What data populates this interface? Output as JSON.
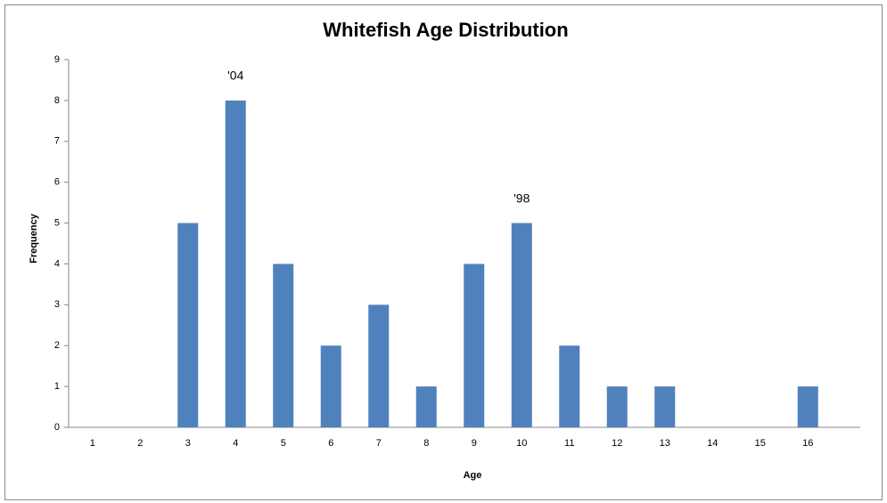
{
  "chart_data": {
    "type": "bar",
    "title": "Whitefish Age Distribution",
    "x_label": "Age",
    "y_label": "Frequency",
    "categories": [
      "1",
      "2",
      "3",
      "4",
      "5",
      "6",
      "7",
      "8",
      "9",
      "10",
      "11",
      "12",
      "13",
      "14",
      "15",
      "16"
    ],
    "values": [
      0,
      0,
      5,
      8,
      4,
      2,
      3,
      1,
      4,
      5,
      2,
      1,
      1,
      0,
      0,
      1
    ],
    "color": "#4f81bd",
    "ylim": [
      0,
      9
    ],
    "yticks": [
      0,
      1,
      2,
      3,
      4,
      5,
      6,
      7,
      8,
      9
    ],
    "grid": false,
    "annotations": [
      {
        "category": 3,
        "text": "'04"
      },
      {
        "category": 9,
        "text": "'98"
      }
    ]
  }
}
